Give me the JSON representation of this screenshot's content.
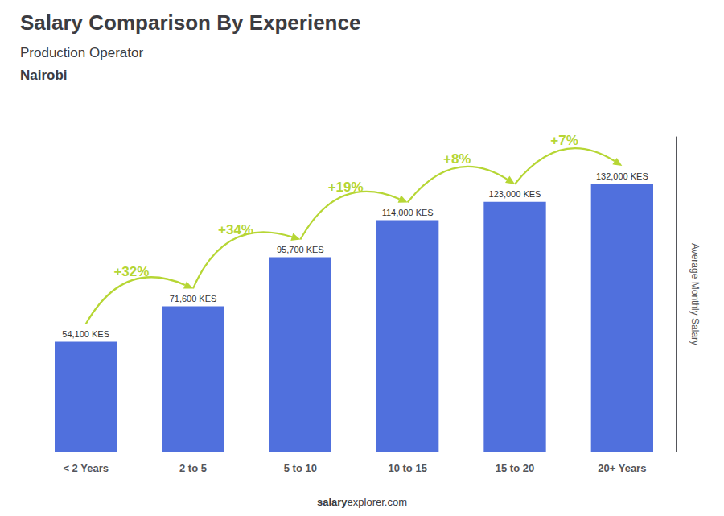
{
  "chart_data": {
    "type": "bar",
    "title": "Salary Comparison By Experience",
    "subtitle": "Production Operator",
    "city": "Nairobi",
    "ylabel": "Average Monthly Salary",
    "footer": [
      "salary",
      "explorer.com"
    ],
    "categories": [
      "< 2 Years",
      "2 to 5",
      "5 to 10",
      "10 to 15",
      "15 to 20",
      "20+ Years"
    ],
    "values": [
      54100,
      71600,
      95700,
      114000,
      123000,
      132000
    ],
    "value_labels": [
      "54,100 KES",
      "71,600 KES",
      "95,700 KES",
      "114,000 KES",
      "123,000 KES",
      "132,000 KES"
    ],
    "changes": [
      null,
      "+32%",
      "+34%",
      "+19%",
      "+8%",
      "+7%"
    ],
    "ylim": [
      0,
      155000
    ],
    "data_labels": true,
    "tick_labels": "x",
    "grid": false
  }
}
